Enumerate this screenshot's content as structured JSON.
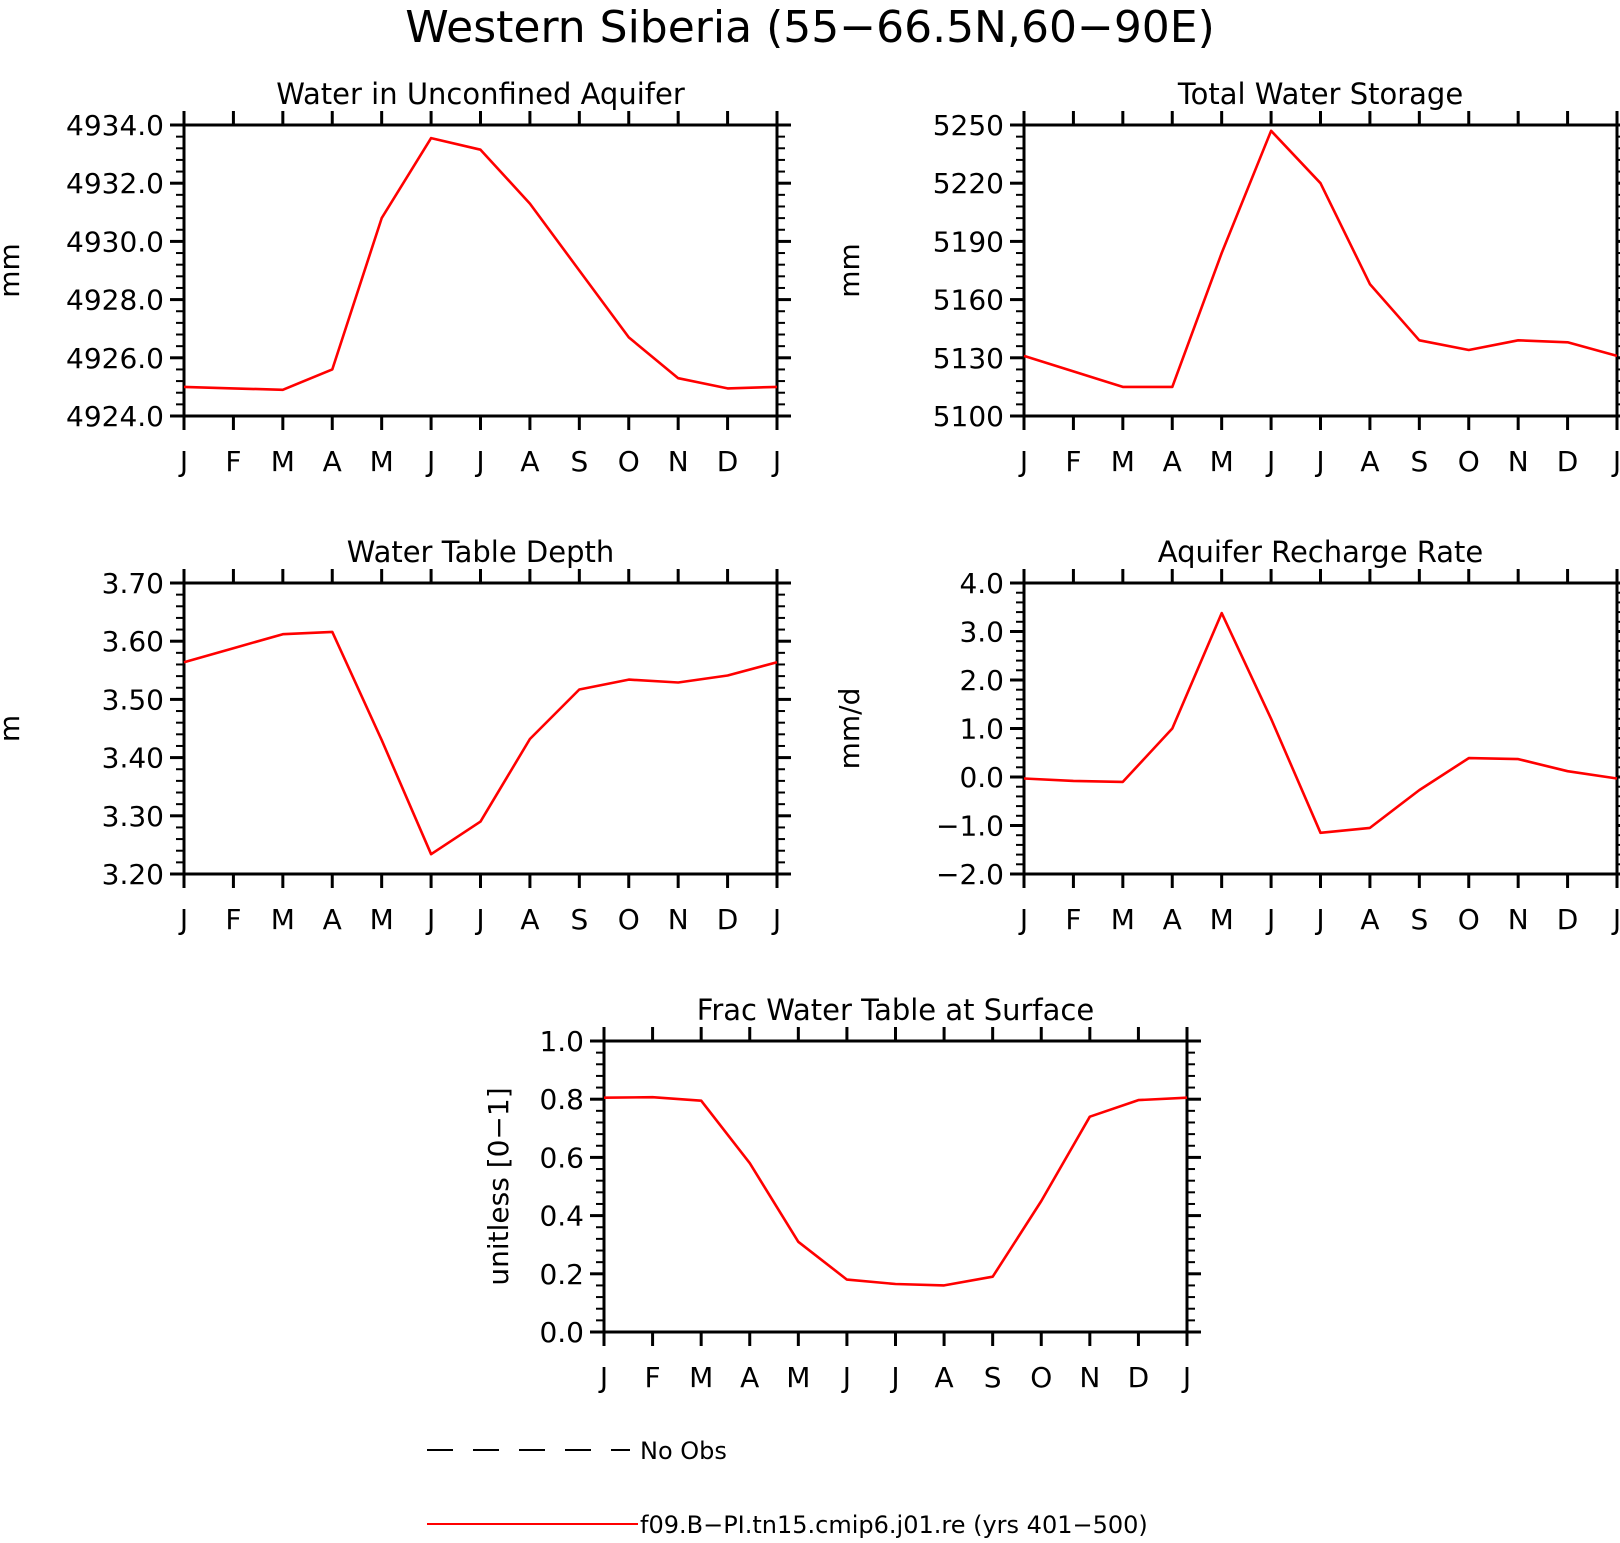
{
  "figure": {
    "title": "Western Siberia (55−66.5N,60−90E)"
  },
  "colors": {
    "series": "#ff0000",
    "axes": "#000000",
    "background": "#ffffff"
  },
  "legend": {
    "placement": "bottom",
    "entries": [
      {
        "label": "No Obs",
        "style": "dashed",
        "color": "#000000"
      },
      {
        "label": "f09.B−PI.tn15.cmip6.j01.re (yrs 401−500)",
        "style": "solid",
        "color": "#ff0000"
      }
    ]
  },
  "chart_data": [
    {
      "type": "line",
      "title": "Water in Unconfined Aquifer",
      "xlabel": "",
      "ylabel": "mm",
      "categories": [
        "J",
        "F",
        "M",
        "A",
        "M",
        "J",
        "J",
        "A",
        "S",
        "O",
        "N",
        "D",
        "J"
      ],
      "ylim": [
        4924.0,
        4934.0
      ],
      "yticks": [
        "4924.0",
        "4926.0",
        "4928.0",
        "4930.0",
        "4932.0",
        "4934.0"
      ],
      "grid": false,
      "series": [
        {
          "name": "f09.B−PI.tn15.cmip6.j01.re (yrs 401−500)",
          "color": "#ff0000",
          "values": [
            4925.0,
            4924.95,
            4924.9,
            4925.6,
            4930.8,
            4933.55,
            4933.15,
            4931.3,
            4929.0,
            4926.7,
            4925.3,
            4924.95,
            4925.0
          ]
        }
      ]
    },
    {
      "type": "line",
      "title": "Total Water Storage",
      "xlabel": "",
      "ylabel": "mm",
      "categories": [
        "J",
        "F",
        "M",
        "A",
        "M",
        "J",
        "J",
        "A",
        "S",
        "O",
        "N",
        "D",
        "J"
      ],
      "ylim": [
        5100,
        5250
      ],
      "yticks": [
        "5100",
        "5130",
        "5160",
        "5190",
        "5220",
        "5250"
      ],
      "grid": false,
      "series": [
        {
          "name": "f09.B−PI.tn15.cmip6.j01.re (yrs 401−500)",
          "color": "#ff0000",
          "values": [
            5131,
            5123,
            5115,
            5115,
            5184,
            5247,
            5220,
            5168,
            5139,
            5134,
            5139,
            5138,
            5131
          ]
        }
      ]
    },
    {
      "type": "line",
      "title": "Water Table Depth",
      "xlabel": "",
      "ylabel": "m",
      "categories": [
        "J",
        "F",
        "M",
        "A",
        "M",
        "J",
        "J",
        "A",
        "S",
        "O",
        "N",
        "D",
        "J"
      ],
      "ylim": [
        3.2,
        3.7
      ],
      "yticks": [
        "3.20",
        "3.30",
        "3.40",
        "3.50",
        "3.60",
        "3.70"
      ],
      "grid": false,
      "series": [
        {
          "name": "f09.B−PI.tn15.cmip6.j01.re (yrs 401−500)",
          "color": "#ff0000",
          "values": [
            3.564,
            3.588,
            3.612,
            3.616,
            3.43,
            3.234,
            3.29,
            3.432,
            3.517,
            3.534,
            3.529,
            3.541,
            3.564
          ]
        }
      ]
    },
    {
      "type": "line",
      "title": "Aquifer Recharge Rate",
      "xlabel": "",
      "ylabel": "mm/d",
      "categories": [
        "J",
        "F",
        "M",
        "A",
        "M",
        "J",
        "J",
        "A",
        "S",
        "O",
        "N",
        "D",
        "J"
      ],
      "ylim": [
        -2.0,
        4.0
      ],
      "yticks": [
        "−2.0",
        "−1.0",
        "0.0",
        "1.0",
        "2.0",
        "3.0",
        "4.0"
      ],
      "grid": false,
      "series": [
        {
          "name": "f09.B−PI.tn15.cmip6.j01.re (yrs 401−500)",
          "color": "#ff0000",
          "values": [
            -0.03,
            -0.08,
            -0.1,
            1.0,
            3.38,
            1.2,
            -1.15,
            -1.05,
            -0.27,
            0.39,
            0.37,
            0.12,
            -0.03
          ]
        }
      ]
    },
    {
      "type": "line",
      "title": "Frac Water Table at Surface",
      "xlabel": "",
      "ylabel": "unitless [0−1]",
      "categories": [
        "J",
        "F",
        "M",
        "A",
        "M",
        "J",
        "J",
        "A",
        "S",
        "O",
        "N",
        "D",
        "J"
      ],
      "ylim": [
        0.0,
        1.0
      ],
      "yticks": [
        "0.0",
        "0.2",
        "0.4",
        "0.6",
        "0.8",
        "1.0"
      ],
      "grid": false,
      "series": [
        {
          "name": "f09.B−PI.tn15.cmip6.j01.re (yrs 401−500)",
          "color": "#ff0000",
          "values": [
            0.805,
            0.807,
            0.795,
            0.58,
            0.31,
            0.18,
            0.165,
            0.16,
            0.19,
            0.45,
            0.74,
            0.797,
            0.805
          ]
        }
      ]
    }
  ]
}
